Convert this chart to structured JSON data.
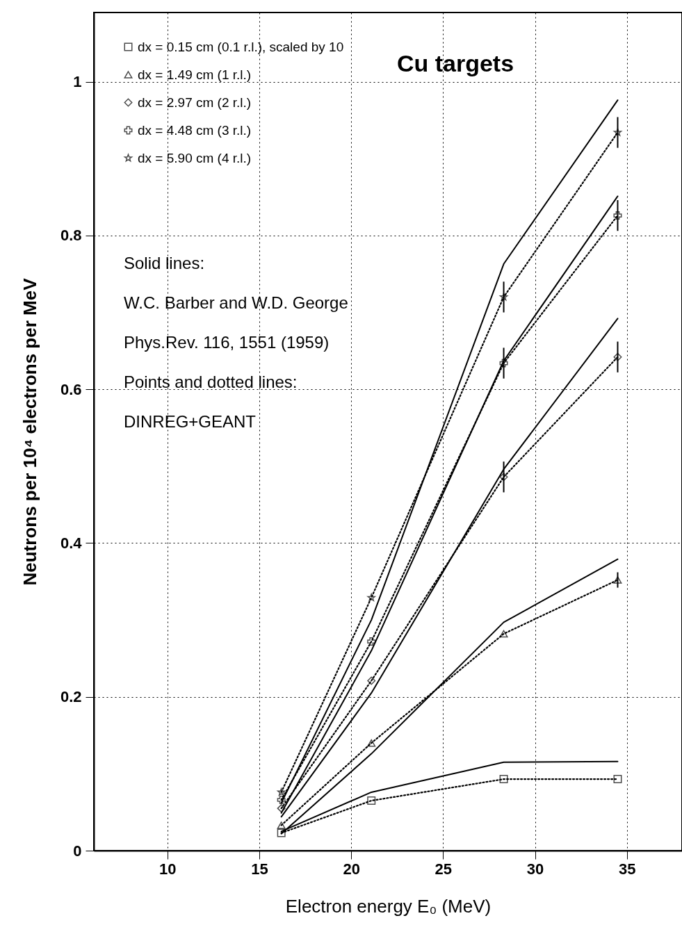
{
  "chart_data": {
    "type": "line",
    "title": "Cu targets",
    "xlabel": "Electron energy E₀ (MeV)",
    "ylabel": "Neutrons per 10⁴ electrons per MeV",
    "x": [
      16.2,
      21.1,
      28.3,
      34.5
    ],
    "series": [
      {
        "name": "dx = 0.15 cm (0.1 r.l.), scaled by 10",
        "line_style": "dotted",
        "marker": "square",
        "color": "#000000",
        "values": [
          0.023,
          0.065,
          0.093,
          0.093
        ]
      },
      {
        "name": "dx = 1.49 cm (1 r.l.)",
        "line_style": "dotted",
        "marker": "triangle",
        "color": "#000000",
        "values": [
          0.033,
          0.14,
          0.282,
          0.352
        ],
        "errors": [
          null,
          null,
          null,
          0.01
        ]
      },
      {
        "name": "dx = 2.97 cm (2 r.l.)",
        "line_style": "dotted",
        "marker": "diamond",
        "color": "#000000",
        "values": [
          0.055,
          0.221,
          0.486,
          0.642
        ],
        "errors": [
          null,
          null,
          0.02,
          0.02
        ]
      },
      {
        "name": "dx = 4.48 cm (3 r.l.)",
        "line_style": "dotted",
        "marker": "cross",
        "color": "#000000",
        "values": [
          0.066,
          0.272,
          0.634,
          0.826
        ],
        "errors": [
          null,
          null,
          0.02,
          0.02
        ]
      },
      {
        "name": "dx = 5.90 cm (4 r.l.)",
        "line_style": "dotted",
        "marker": "star",
        "color": "#000000",
        "values": [
          0.076,
          0.329,
          0.72,
          0.934
        ],
        "errors": [
          null,
          null,
          0.02,
          0.02
        ]
      },
      {
        "line_style": "solid",
        "marker": "none",
        "color": "#000000",
        "values": [
          0.025,
          0.076,
          0.115,
          0.116
        ]
      },
      {
        "line_style": "solid",
        "marker": "none",
        "color": "#000000",
        "values": [
          0.022,
          0.126,
          0.297,
          0.379
        ]
      },
      {
        "line_style": "solid",
        "marker": "none",
        "color": "#000000",
        "values": [
          0.044,
          0.205,
          0.496,
          0.692
        ]
      },
      {
        "line_style": "solid",
        "marker": "none",
        "color": "#000000",
        "values": [
          0.049,
          0.26,
          0.637,
          0.851
        ]
      },
      {
        "line_style": "solid",
        "marker": "none",
        "color": "#000000",
        "values": [
          0.062,
          0.3,
          0.763,
          0.976
        ]
      }
    ],
    "xlim": [
      6,
      38
    ],
    "xticks": [
      10,
      15,
      20,
      25,
      30,
      35
    ],
    "ylim": [
      0,
      1.09
    ],
    "yticks": [
      0,
      0.2,
      0.4,
      0.6,
      0.8,
      1
    ],
    "grid": true,
    "legend": "top left",
    "annotations": [
      "Solid lines:",
      "W.C. Barber and W.D. George",
      "Phys.Rev. 116, 1551 (1959)",
      "Points and dotted lines:",
      "DINREG+GEANT"
    ]
  }
}
